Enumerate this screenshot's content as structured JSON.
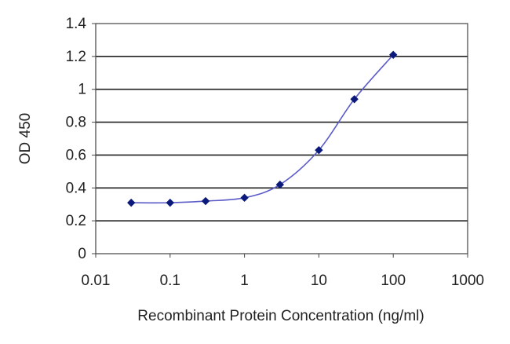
{
  "chart_data": {
    "type": "line",
    "title": "",
    "xlabel": "Recombinant Protein Concentration (ng/ml)",
    "ylabel": "OD 450",
    "x_scale": "log",
    "xlim": [
      0.01,
      1000
    ],
    "ylim": [
      0,
      1.4
    ],
    "x_ticks": [
      "0.01",
      "0.1",
      "1",
      "10",
      "100",
      "1000"
    ],
    "y_ticks": [
      "0",
      "0.2",
      "0.4",
      "0.6",
      "0.8",
      "1",
      "1.2",
      "1.4"
    ],
    "grid": "horizontal",
    "legend": "none",
    "series": [
      {
        "x": [
          0.03,
          0.1,
          0.3,
          1,
          3,
          10,
          30,
          100
        ],
        "y": [
          0.31,
          0.31,
          0.32,
          0.34,
          0.42,
          0.63,
          0.94,
          1.21
        ]
      }
    ],
    "colors": {
      "line": "#5b5bc8",
      "marker": "#0b1a7a",
      "grid": "#222222",
      "axis": "#444444"
    }
  }
}
